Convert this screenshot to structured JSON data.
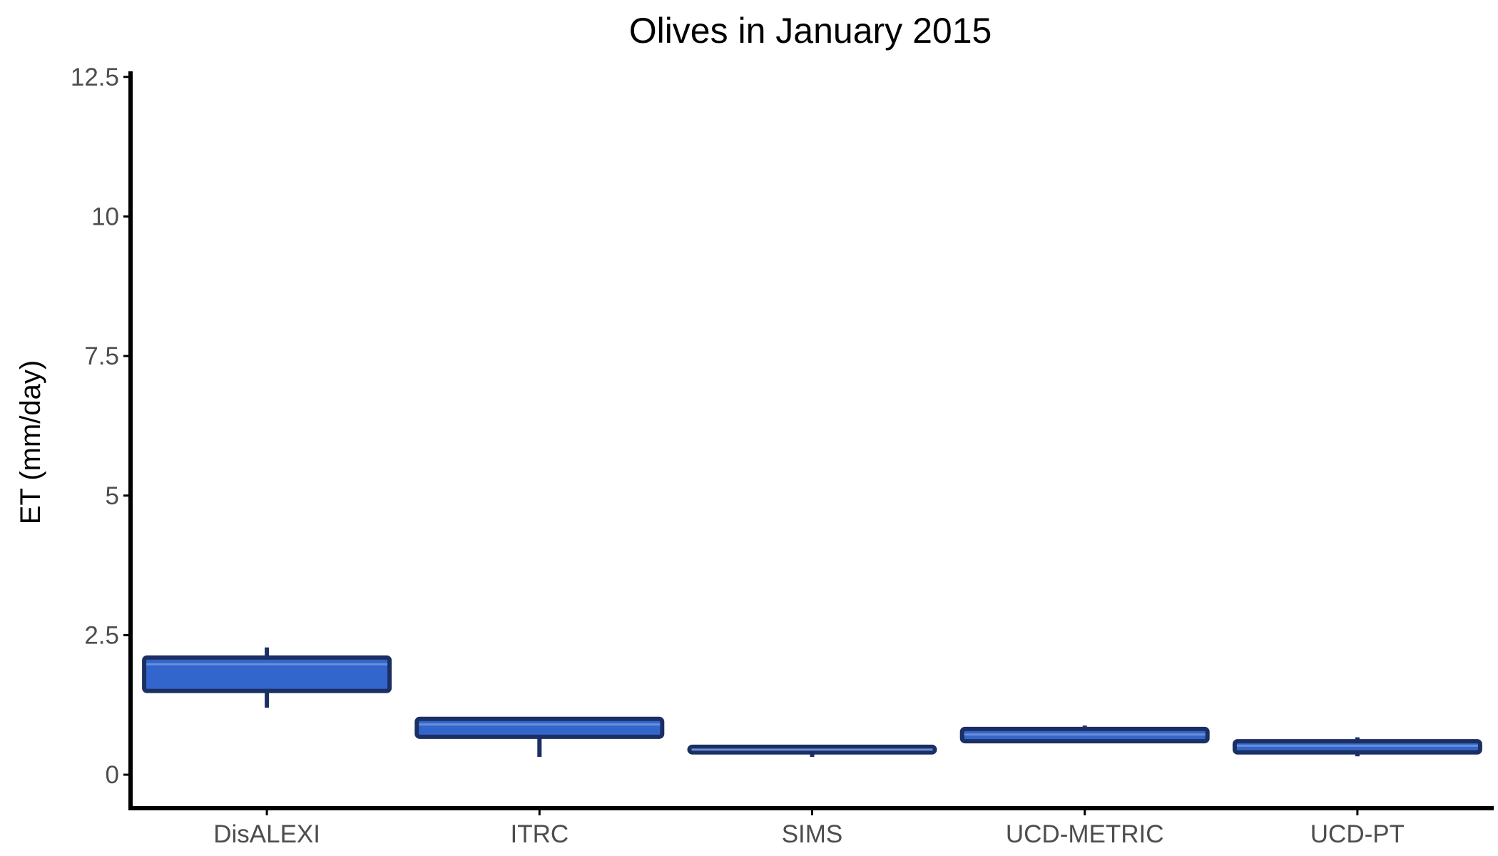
{
  "chart_data": {
    "type": "boxplot",
    "title": "Olives in January 2015",
    "xlabel": "",
    "ylabel": "ET (mm/day)",
    "ylim": [
      -0.6,
      12.6
    ],
    "yticks": [
      0,
      2.5,
      5,
      7.5,
      10,
      12.5
    ],
    "ytick_labels": [
      "0",
      "2.5",
      "5",
      "7.5",
      "10",
      "12.5"
    ],
    "grid": false,
    "legend": "none",
    "colors": {
      "fill": "#3366cc",
      "stroke": "#1b2f63",
      "median": "#6a8fd8",
      "axis": "#000000"
    },
    "categories": [
      "DisALEXI",
      "ITRC",
      "SIMS",
      "UCD-METRIC",
      "UCD-PT"
    ],
    "boxes": [
      {
        "category": "DisALEXI",
        "min": 1.2,
        "q1": 1.5,
        "median": 1.98,
        "q3": 2.1,
        "max": 2.28
      },
      {
        "category": "ITRC",
        "min": 0.32,
        "q1": 0.68,
        "median": 0.9,
        "q3": 1.0,
        "max": 1.0
      },
      {
        "category": "SIMS",
        "min": 0.32,
        "q1": 0.4,
        "median": 0.45,
        "q3": 0.5,
        "max": 0.5
      },
      {
        "category": "UCD-METRIC",
        "min": 0.58,
        "q1": 0.6,
        "median": 0.72,
        "q3": 0.82,
        "max": 0.88
      },
      {
        "category": "UCD-PT",
        "min": 0.33,
        "q1": 0.4,
        "median": 0.52,
        "q3": 0.6,
        "max": 0.67
      }
    ]
  }
}
